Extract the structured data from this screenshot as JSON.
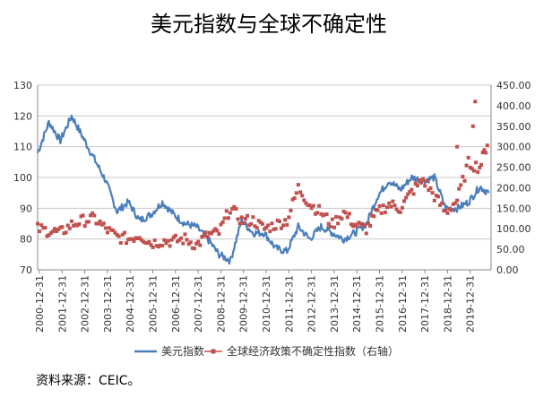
{
  "chart_data": {
    "type": "line",
    "title": "美元指数与全球不确定性",
    "xlabel": "",
    "ylabel": "",
    "y2label": "右轴",
    "x_tick_labels": [
      "2000-12-31",
      "2001-12-31",
      "2002-12-31",
      "2003-12-31",
      "2004-12-31",
      "2005-12-31",
      "2006-12-31",
      "2007-12-31",
      "2008-12-31",
      "2009-12-31",
      "2010-12-31",
      "2011-12-31",
      "2012-12-31",
      "2013-12-31",
      "2014-12-31",
      "2015-12-31",
      "2016-12-31",
      "2017-12-31",
      "2018-12-31",
      "2019-12-31"
    ],
    "ylim": [
      70,
      130
    ],
    "yticks": [
      70,
      80,
      90,
      100,
      110,
      120,
      130
    ],
    "y2lim": [
      0,
      450
    ],
    "y2ticks": [
      "0.00",
      "50.00",
      "100.00",
      "150.00",
      "200.00",
      "250.00",
      "300.00",
      "350.00",
      "400.00",
      "450.00"
    ],
    "grid": true,
    "legend_position": "bottom",
    "series": [
      {
        "name": "美元指数",
        "axis": "left",
        "style": "line",
        "color": "#4a7ebb",
        "x": [
          2000.0,
          2000.5,
          2001.0,
          2001.5,
          2002.0,
          2002.5,
          2003.0,
          2003.5,
          2004.0,
          2004.5,
          2005.0,
          2005.5,
          2006.0,
          2006.5,
          2007.0,
          2007.5,
          2008.0,
          2008.5,
          2009.0,
          2009.5,
          2010.0,
          2010.5,
          2011.0,
          2011.5,
          2012.0,
          2012.5,
          2013.0,
          2013.5,
          2014.0,
          2014.5,
          2015.0,
          2015.5,
          2016.0,
          2016.5,
          2017.0,
          2017.5,
          2018.0,
          2018.5,
          2019.0,
          2019.5,
          2019.9
        ],
        "values": [
          108,
          118,
          112,
          120,
          113,
          106,
          99,
          89,
          92,
          86,
          88,
          92,
          88,
          85,
          84,
          80,
          75,
          73,
          86,
          82,
          82,
          77,
          76,
          84,
          80,
          84,
          82,
          80,
          82,
          85,
          94,
          99,
          96,
          100,
          99,
          100,
          90,
          90,
          92,
          97,
          95
        ]
      },
      {
        "name": "全球经济政策不确定性指数（右轴）",
        "axis": "right",
        "style": "markers",
        "color": "#c0504d",
        "x": [
          2000.0,
          2000.5,
          2001.0,
          2001.5,
          2002.0,
          2002.5,
          2003.0,
          2003.5,
          2004.0,
          2004.5,
          2005.0,
          2005.5,
          2006.0,
          2006.5,
          2007.0,
          2007.5,
          2008.0,
          2008.5,
          2009.0,
          2009.5,
          2010.0,
          2010.5,
          2011.0,
          2011.5,
          2012.0,
          2012.5,
          2013.0,
          2013.5,
          2014.0,
          2014.5,
          2015.0,
          2015.5,
          2016.0,
          2016.5,
          2017.0,
          2017.5,
          2018.0,
          2018.5,
          2019.0,
          2019.5,
          2019.9
        ],
        "values": [
          100,
          95,
          90,
          110,
          120,
          125,
          100,
          80,
          75,
          85,
          65,
          70,
          70,
          75,
          60,
          85,
          90,
          150,
          120,
          120,
          100,
          110,
          120,
          200,
          160,
          140,
          110,
          140,
          110,
          100,
          140,
          160,
          150,
          190,
          220,
          180,
          140,
          170,
          260,
          250,
          320
        ]
      }
    ],
    "extra_points": [
      {
        "x": 2019.2,
        "y": 350
      },
      {
        "x": 2019.3,
        "y": 410
      },
      {
        "x": 2018.5,
        "y": 300
      }
    ]
  },
  "legend": {
    "series1_label": "美元指数",
    "series2_label": "全球经济政策不确定性指数（右轴）"
  },
  "source": "资料来源：CEIC。"
}
